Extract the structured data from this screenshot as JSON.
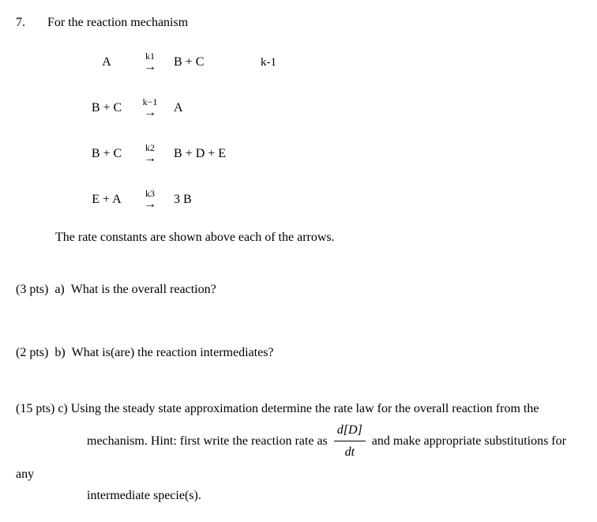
{
  "question_number": "7.",
  "prompt": "For the reaction mechanism",
  "equations": [
    {
      "lhs": "A",
      "rc": "k1",
      "rhs": "B  +  C",
      "side": "k-1"
    },
    {
      "lhs": "B + C",
      "rc": "k−1",
      "rhs": "A",
      "side": ""
    },
    {
      "lhs": "B + C",
      "rc": "k2",
      "rhs": "B + D + E",
      "side": ""
    },
    {
      "lhs": "E + A",
      "rc": "k3",
      "rhs": "3 B",
      "side": ""
    }
  ],
  "arrow_glyph": "→",
  "note": "The rate constants are shown above each of the arrows.",
  "part_a": {
    "pts": "(3 pts)",
    "label": "a)",
    "text": "What is the overall reaction?"
  },
  "part_b": {
    "pts": "(2 pts)",
    "label": "b)",
    "text": "What is(are) the reaction intermediates?"
  },
  "part_c": {
    "pts": "(15 pts)",
    "label": "c)",
    "lead": "Using the steady state approximation determine the rate law for the overall reaction from the",
    "line2_a": "mechanism.   Hint: first write the reaction rate as",
    "frac_num": "d[D]",
    "frac_den": "dt",
    "line2_b": "and make appropriate substitutions for any",
    "line3": "intermediate specie(s)."
  }
}
